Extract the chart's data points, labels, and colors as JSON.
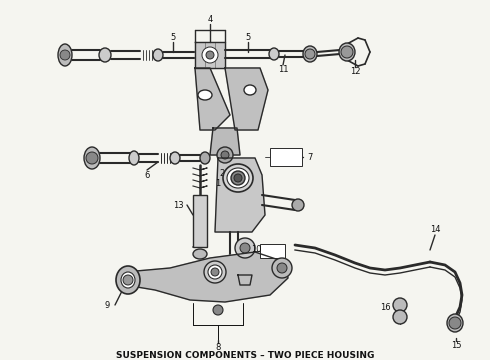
{
  "title": "SUSPENSION COMPONENTS – TWO PIECE HOUSING",
  "title_fontsize": 6.5,
  "bg_color": "#f5f5f0",
  "line_color": "#2a2a2a",
  "label_color": "#111111",
  "fig_w": 4.9,
  "fig_h": 3.6,
  "dpi": 100
}
